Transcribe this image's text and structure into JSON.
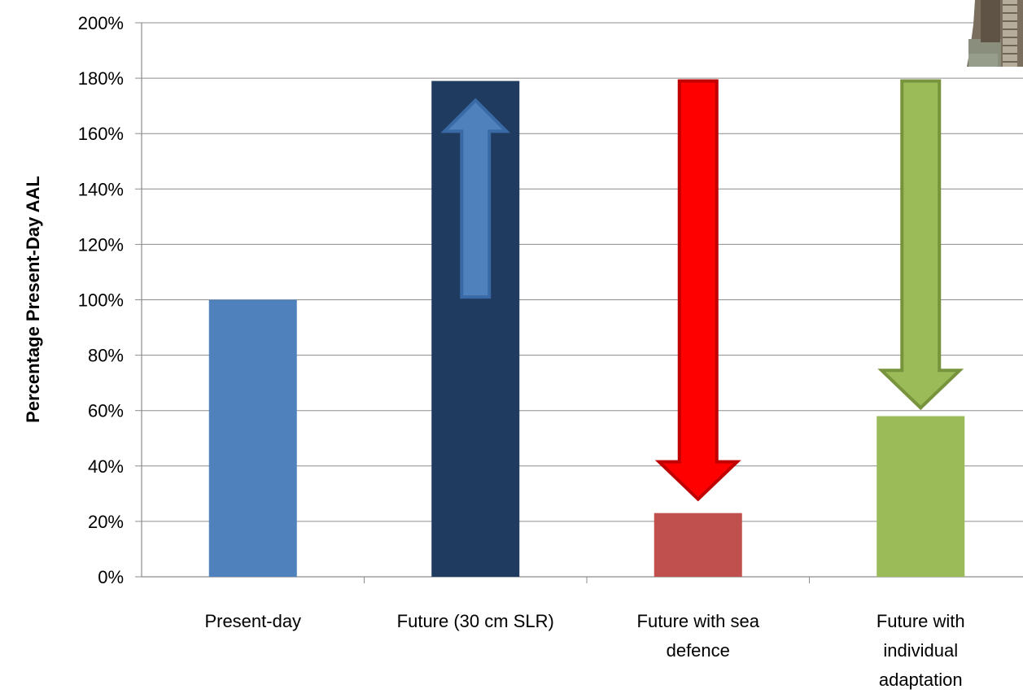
{
  "chart_data": {
    "type": "bar",
    "title": "",
    "xlabel": "",
    "ylabel": "Percentage Present-Day AAL",
    "ylim": [
      0,
      200
    ],
    "yticks": [
      "0%",
      "20%",
      "40%",
      "60%",
      "80%",
      "100%",
      "120%",
      "140%",
      "160%",
      "180%",
      "200%"
    ],
    "grid": true,
    "categories": [
      [
        "Present-day"
      ],
      [
        "Future (30 cm SLR)"
      ],
      [
        "Future with sea",
        "defence"
      ],
      [
        "Future with",
        "individual",
        "adaptation"
      ]
    ],
    "values": [
      100,
      179,
      23,
      58
    ],
    "bar_colors": [
      "#4F81BD",
      "#1F3B60",
      "#C0504D",
      "#9BBB59"
    ],
    "arrows": [
      {
        "category_index": 1,
        "from": 101,
        "to": 172,
        "direction": "up",
        "fill": "#4F81BD",
        "stroke": "#3A6AA6"
      },
      {
        "category_index": 2,
        "from": 179,
        "to": 28,
        "direction": "down",
        "fill": "#FF0000",
        "stroke": "#C00000"
      },
      {
        "category_index": 3,
        "from": 179,
        "to": 61,
        "direction": "down",
        "fill": "#9BBB59",
        "stroke": "#77933C"
      }
    ],
    "inset_photo": {
      "description_icon": "photo-thumbnail"
    }
  }
}
